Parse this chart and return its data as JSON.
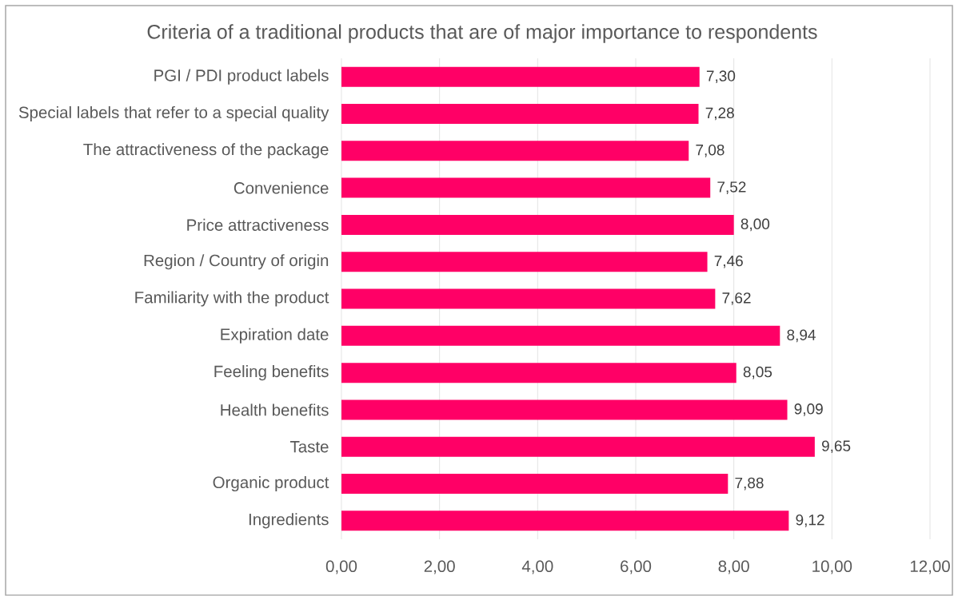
{
  "chart_data": {
    "type": "bar",
    "orientation": "horizontal",
    "title": "Criteria of a traditional products that are of major importance to respondents",
    "categories": [
      "PGI / PDI product labels",
      "Special labels that refer to a special quality",
      "The attractiveness of the package",
      "Convenience",
      "Price attractiveness",
      "Region / Country of origin",
      "Familiarity with the product",
      "Expiration date",
      "Feeling benefits",
      "Health benefits",
      "Taste",
      "Organic product",
      "Ingredients"
    ],
    "values": [
      7.3,
      7.28,
      7.08,
      7.52,
      8.0,
      7.46,
      7.62,
      8.94,
      8.05,
      9.09,
      9.65,
      7.88,
      9.12
    ],
    "value_labels": [
      "7,30",
      "7,28",
      "7,08",
      "7,52",
      "8,00",
      "7,46",
      "7,62",
      "8,94",
      "8,05",
      "9,09",
      "9,65",
      "7,88",
      "9,12"
    ],
    "color": "#ff0066",
    "xlim": [
      0,
      12
    ],
    "xticks": [
      {
        "value": 0,
        "label": "0,00"
      },
      {
        "value": 2,
        "label": "2,00"
      },
      {
        "value": 4,
        "label": "4,00"
      },
      {
        "value": 6,
        "label": "6,00"
      },
      {
        "value": 8,
        "label": "8,00"
      },
      {
        "value": 10,
        "label": "10,00"
      },
      {
        "value": 12,
        "label": "12,00"
      }
    ],
    "grid": "x"
  }
}
